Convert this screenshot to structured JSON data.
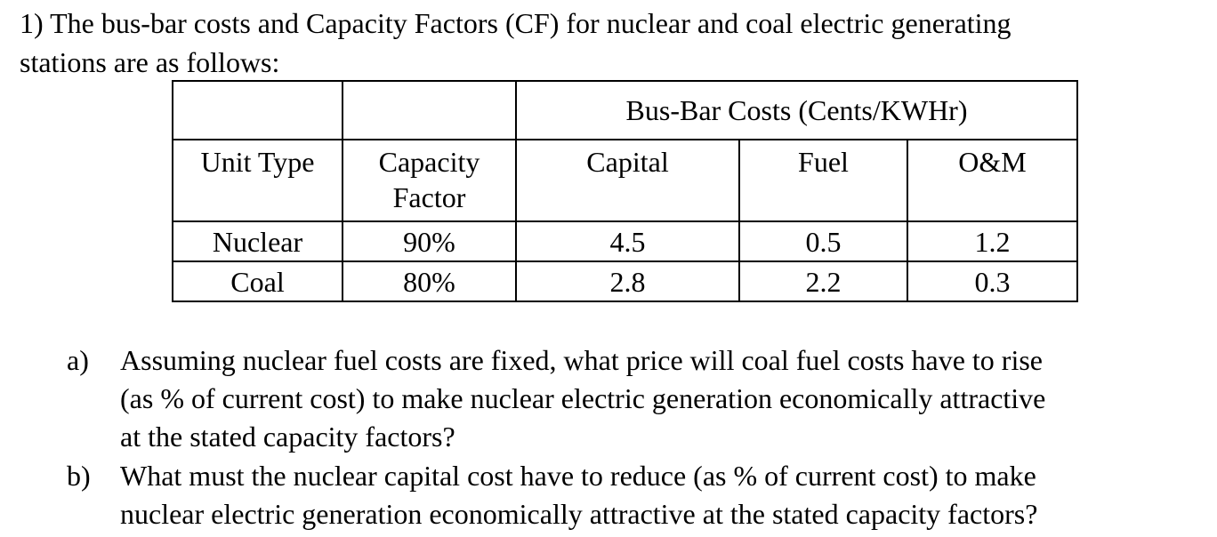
{
  "problem": {
    "line1": "1) The bus-bar costs and Capacity Factors (CF) for nuclear and coal electric generating",
    "line2": "stations are as follows:"
  },
  "table": {
    "group_header": "Bus-Bar Costs (Cents/KWHr)",
    "headers": [
      "Unit Type",
      "Capacity Factor",
      "Capital",
      "Fuel",
      "O&M"
    ],
    "header_capacity_line1": "Capacity",
    "header_capacity_line2": "Factor",
    "rows": [
      [
        "Nuclear",
        "90%",
        "4.5",
        "0.5",
        "1.2"
      ],
      [
        "Coal",
        "80%",
        "2.8",
        "2.2",
        "0.3"
      ]
    ]
  },
  "questions": [
    {
      "label": "a)",
      "lines": [
        "Assuming nuclear fuel costs are fixed, what price will coal fuel costs have to rise",
        "(as % of current cost) to make nuclear electric generation economically attractive",
        "at the stated capacity factors?"
      ]
    },
    {
      "label": "b)",
      "lines": [
        "What must the nuclear capital cost have to reduce (as % of current cost) to make",
        "nuclear electric generation economically attractive at the stated capacity factors?"
      ]
    }
  ]
}
